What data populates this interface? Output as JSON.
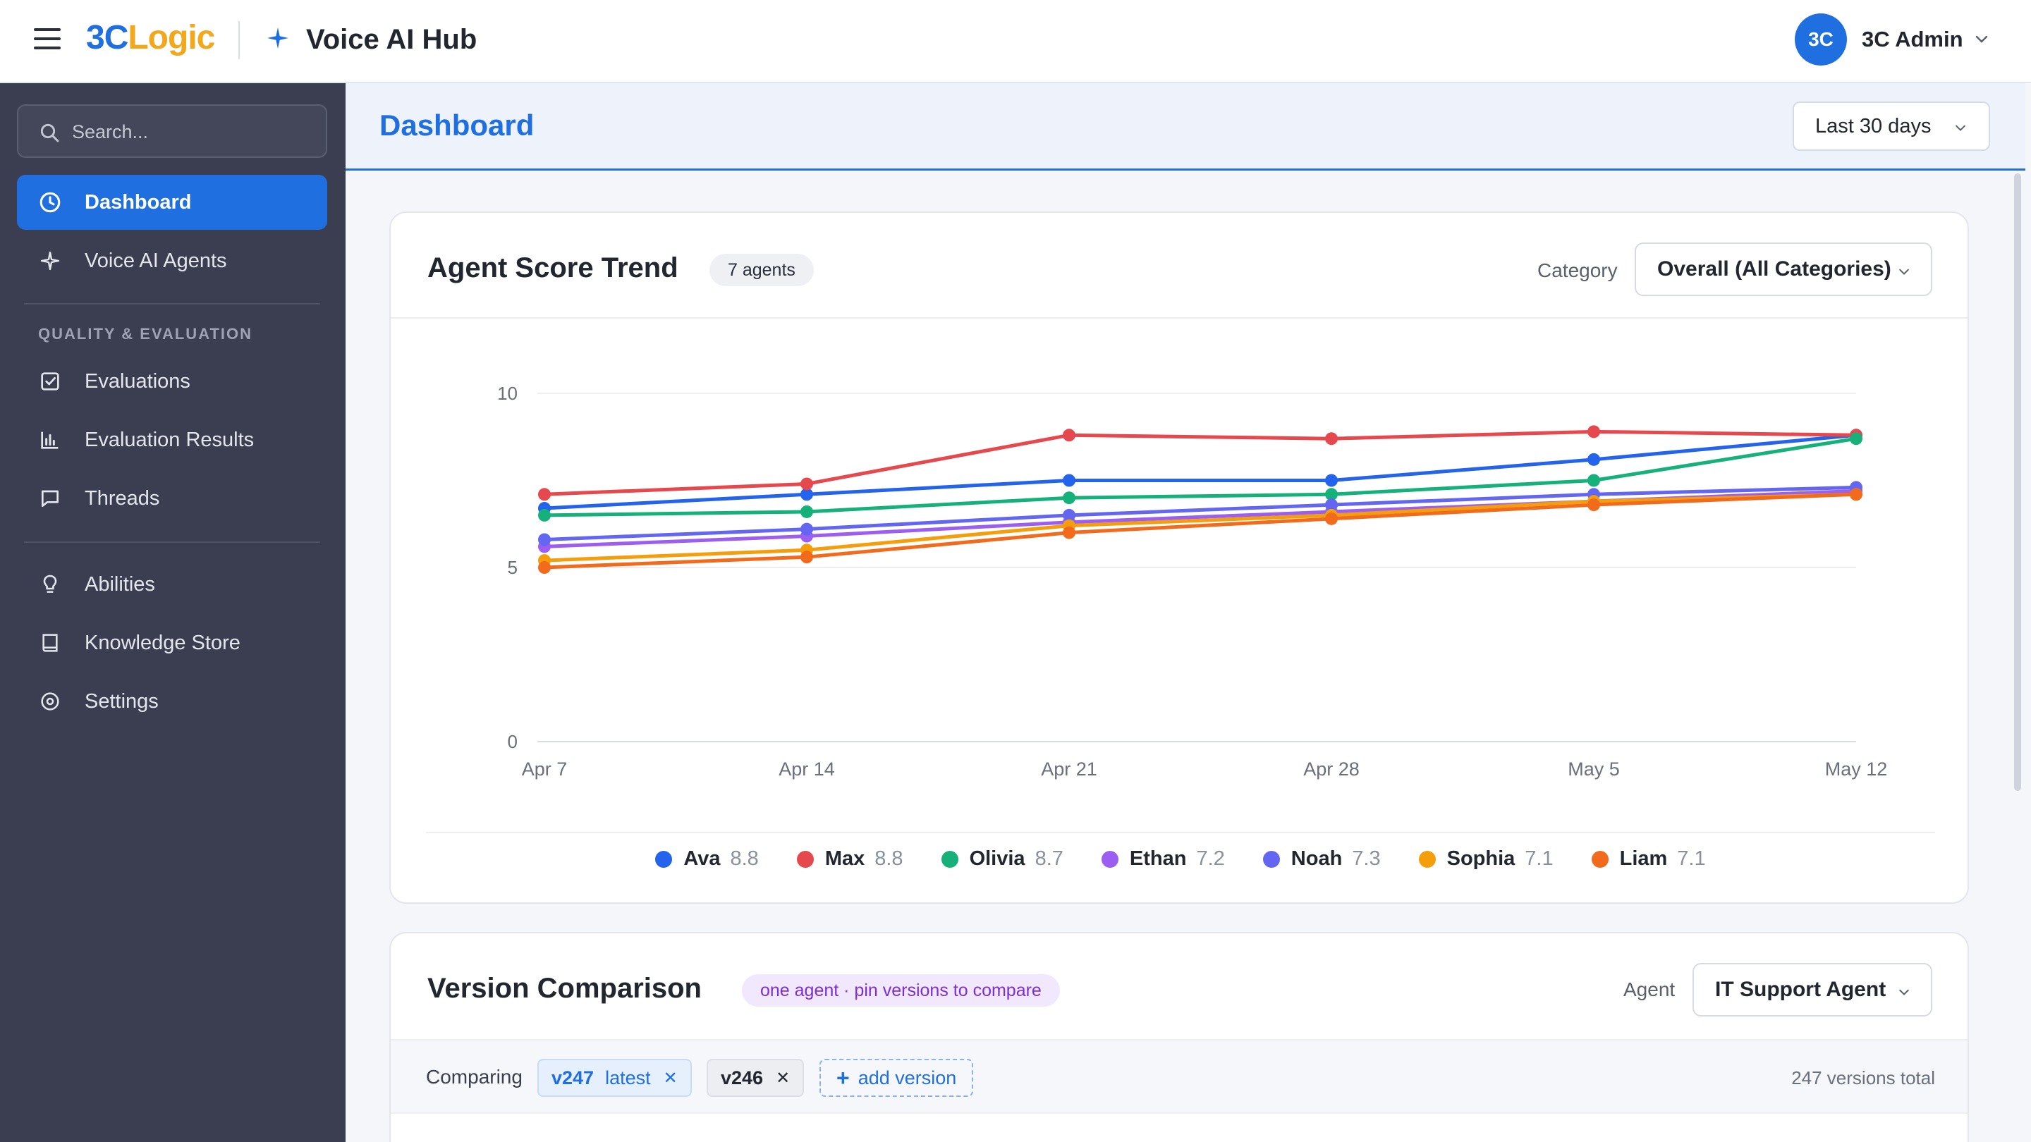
{
  "topbar": {
    "brand_part1": "3C",
    "brand_part2": "Logic",
    "app_title": "Voice AI Hub",
    "user_initials": "3C",
    "user_name": "3C Admin"
  },
  "sidebar": {
    "search_placeholder": "Search...",
    "primary": [
      {
        "label": "Dashboard",
        "icon": "clock-icon",
        "active": true
      },
      {
        "label": "Voice AI Agents",
        "icon": "sparkle-icon",
        "active": false
      }
    ],
    "section_heading": "QUALITY & EVALUATION",
    "quality": [
      {
        "label": "Evaluations",
        "icon": "checkbox-icon"
      },
      {
        "label": "Evaluation Results",
        "icon": "bar-chart-icon"
      },
      {
        "label": "Threads",
        "icon": "chat-bubble-icon"
      }
    ],
    "secondary": [
      {
        "label": "Abilities",
        "icon": "lightbulb-icon"
      },
      {
        "label": "Knowledge Store",
        "icon": "book-icon"
      },
      {
        "label": "Settings",
        "icon": "settings-icon"
      }
    ]
  },
  "header": {
    "title": "Dashboard",
    "range": "Last 30 days"
  },
  "trend_card": {
    "title": "Agent Score Trend",
    "badge": "7 agents",
    "category_label": "Category",
    "category_value": "Overall (All Categories)"
  },
  "chart_data": {
    "type": "line",
    "x": [
      "Apr 7",
      "Apr 14",
      "Apr 21",
      "Apr 28",
      "May 5",
      "May 12"
    ],
    "ylim": [
      0,
      10
    ],
    "yticks": [
      "0",
      "5",
      "10"
    ],
    "grid": true,
    "legend_position": "bottom",
    "series": [
      {
        "name": "Ava",
        "latest": "8.8",
        "color": "#2463eb",
        "values": [
          6.7,
          7.1,
          7.5,
          7.5,
          8.1,
          8.8
        ]
      },
      {
        "name": "Max",
        "latest": "8.8",
        "color": "#e5484d",
        "values": [
          7.1,
          7.4,
          8.8,
          8.7,
          8.9,
          8.8
        ]
      },
      {
        "name": "Olivia",
        "latest": "8.7",
        "color": "#16b17a",
        "values": [
          6.5,
          6.6,
          7.0,
          7.1,
          7.5,
          8.7
        ]
      },
      {
        "name": "Ethan",
        "latest": "7.2",
        "color": "#9b5ef0",
        "values": [
          5.6,
          5.9,
          6.3,
          6.6,
          6.9,
          7.2
        ]
      },
      {
        "name": "Noah",
        "latest": "7.3",
        "color": "#6366f1",
        "values": [
          5.8,
          6.1,
          6.5,
          6.8,
          7.1,
          7.3
        ]
      },
      {
        "name": "Sophia",
        "latest": "7.1",
        "color": "#f59e0b",
        "values": [
          5.2,
          5.5,
          6.2,
          6.5,
          6.9,
          7.1
        ]
      },
      {
        "name": "Liam",
        "latest": "7.1",
        "color": "#f26b1d",
        "values": [
          5.0,
          5.3,
          6.0,
          6.4,
          6.8,
          7.1
        ]
      }
    ]
  },
  "version_card": {
    "title": "Version Comparison",
    "badge": "one agent · pin versions to compare",
    "agent_label": "Agent",
    "agent_value": "IT Support Agent",
    "comparing_label": "Comparing",
    "chips": [
      {
        "version": "v247",
        "tag": "latest",
        "style": "blue"
      },
      {
        "version": "v246",
        "tag": "",
        "style": "grey"
      }
    ],
    "add_label": "add version",
    "total": "247 versions total"
  }
}
